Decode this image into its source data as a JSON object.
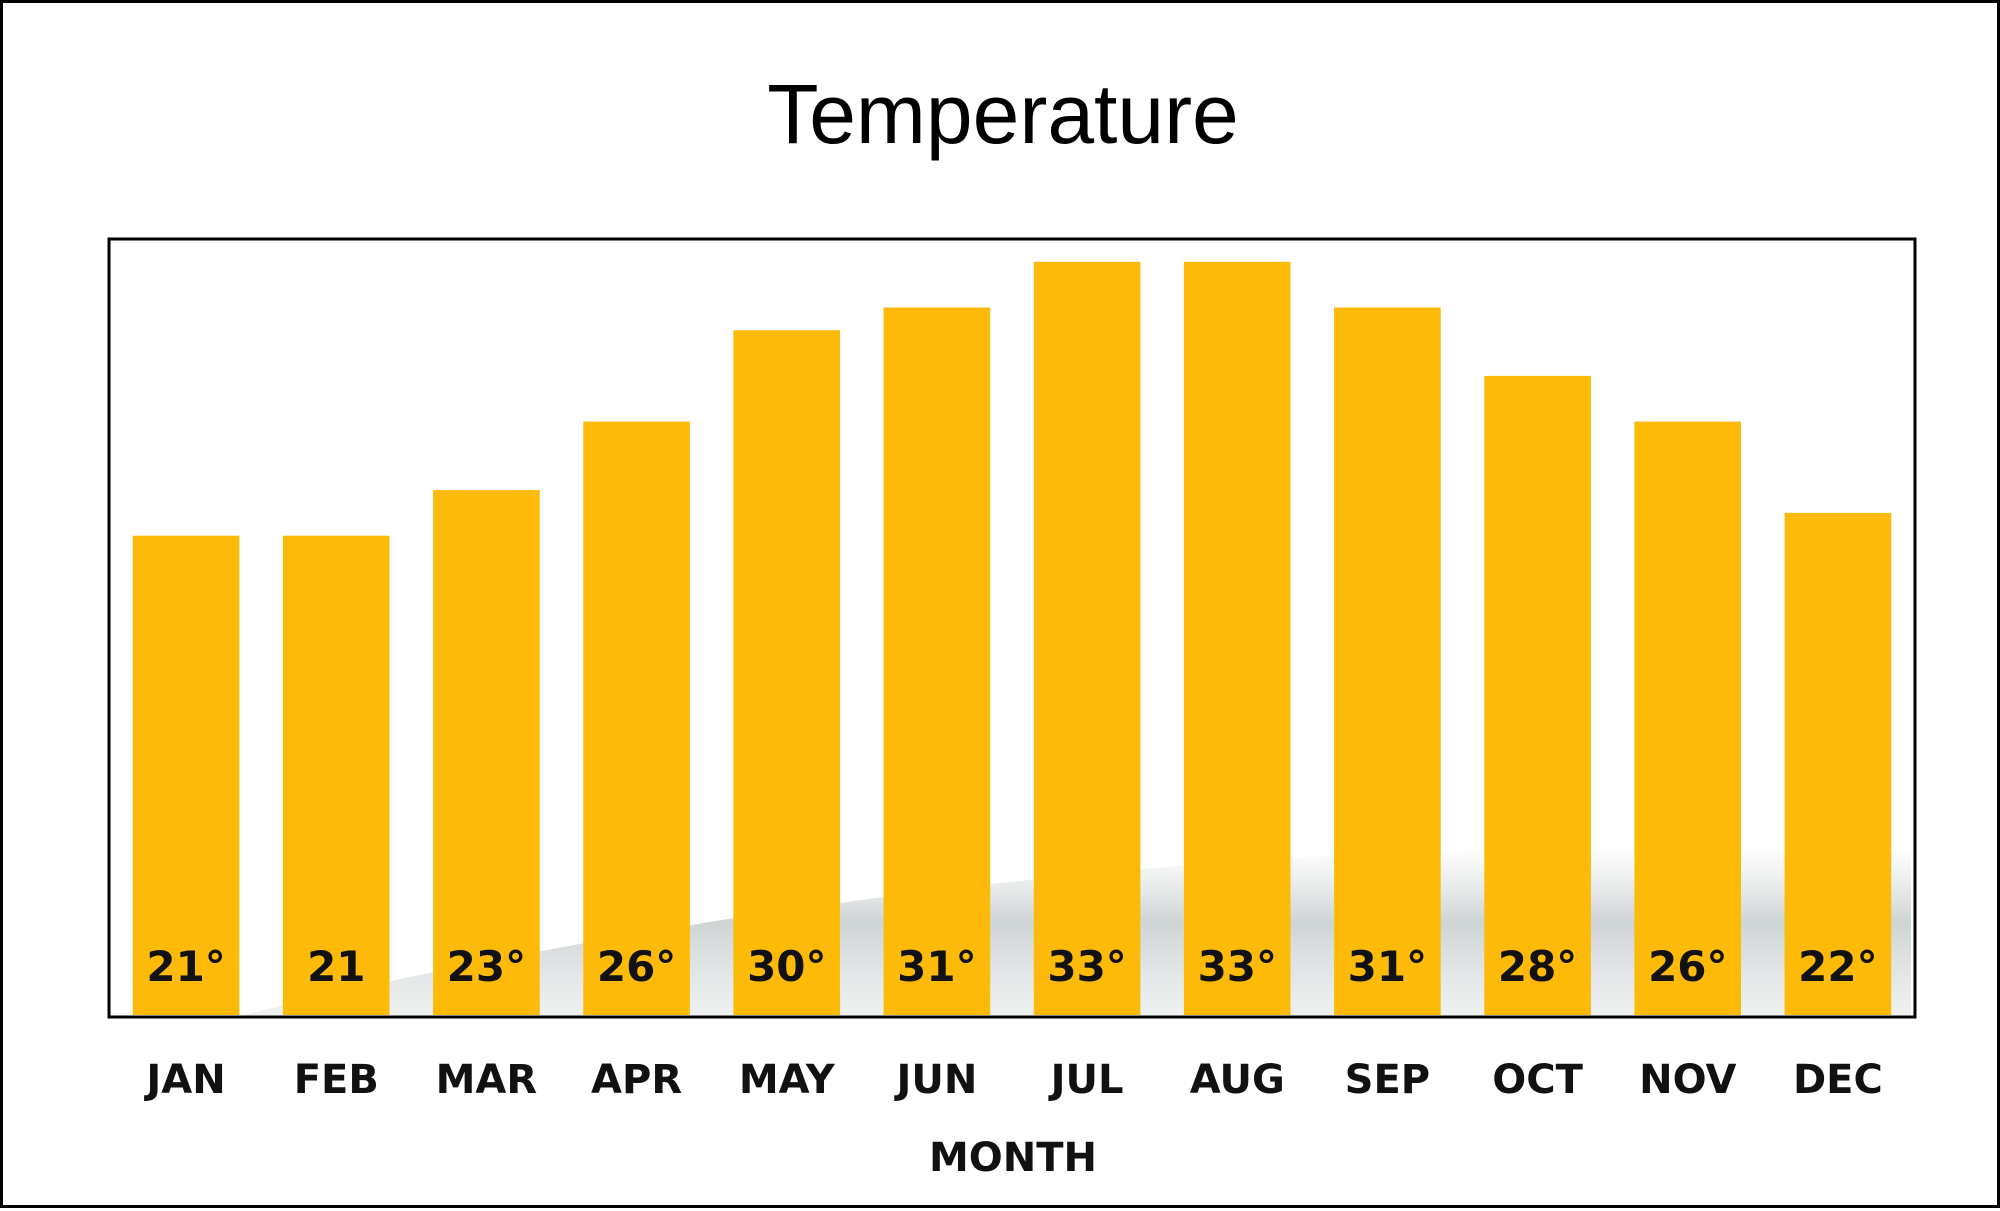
{
  "chart_data": {
    "type": "bar",
    "title": "Temperature",
    "xlabel": "MONTH",
    "ylabel": "",
    "categories": [
      "JAN",
      "FEB",
      "MAR",
      "APR",
      "MAY",
      "JUN",
      "JUL",
      "AUG",
      "SEP",
      "OCT",
      "NOV",
      "DEC"
    ],
    "values": [
      21,
      21,
      23,
      26,
      30,
      31,
      33,
      33,
      31,
      28,
      26,
      22
    ],
    "data_labels": [
      "21°",
      "21",
      "23°",
      "26°",
      "30°",
      "31°",
      "33°",
      "33°",
      "31°",
      "28°",
      "26°",
      "22°"
    ],
    "ylim": [
      0,
      34
    ],
    "grid": false,
    "legend": "none",
    "bar_color": "#FDBA08"
  }
}
